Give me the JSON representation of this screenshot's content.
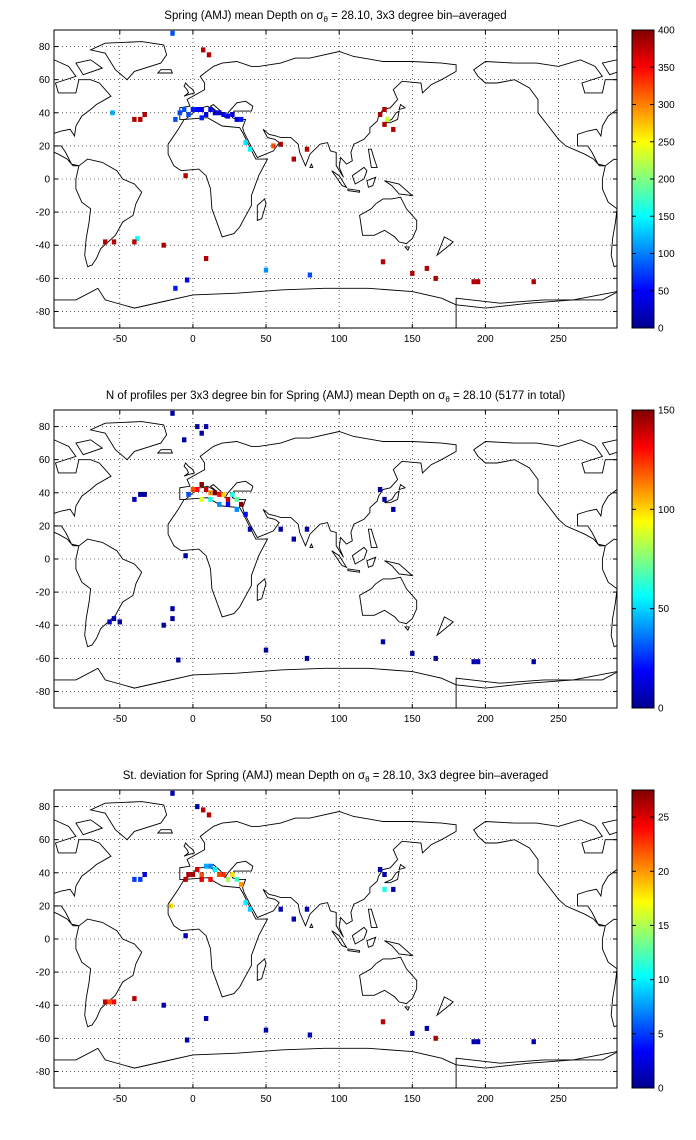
{
  "chart_data": [
    {
      "type": "heatmap",
      "title_pre": "Spring (AMJ) mean Depth on ",
      "title_sym": "σ",
      "title_sub": "θ",
      "title_post": " = 28.10, 3x3 degree bin–averaged",
      "x_ticks": [
        "-50",
        "0",
        "50",
        "100",
        "150",
        "200",
        "250"
      ],
      "y_ticks": [
        "80",
        "60",
        "40",
        "20",
        "0",
        "-20",
        "-40",
        "-60",
        "-80"
      ],
      "xlim": [
        -95,
        290
      ],
      "ylim": [
        -90,
        90
      ],
      "grid": true,
      "colorbar": {
        "min": 0,
        "max": 400,
        "ticks": [
          "0",
          "50",
          "100",
          "150",
          "200",
          "250",
          "300",
          "350",
          "400"
        ]
      },
      "points": [
        [
          -14,
          88,
          80
        ],
        [
          7,
          78,
          380
        ],
        [
          11,
          75,
          380
        ],
        [
          -55,
          40,
          120
        ],
        [
          -40,
          36,
          380
        ],
        [
          -36,
          36,
          380
        ],
        [
          -33,
          39,
          380
        ],
        [
          -12,
          36,
          80
        ],
        [
          -9,
          40,
          80
        ],
        [
          -6,
          42,
          80
        ],
        [
          -3,
          39,
          80
        ],
        [
          0,
          42,
          60
        ],
        [
          3,
          42,
          50
        ],
        [
          6,
          42,
          40
        ],
        [
          9,
          39,
          40
        ],
        [
          12,
          42,
          40
        ],
        [
          15,
          40,
          30
        ],
        [
          18,
          40,
          30
        ],
        [
          21,
          39,
          40
        ],
        [
          24,
          38,
          40
        ],
        [
          27,
          39,
          40
        ],
        [
          30,
          36,
          40
        ],
        [
          33,
          36,
          60
        ],
        [
          6,
          37,
          60
        ],
        [
          36,
          22,
          140
        ],
        [
          39,
          18,
          150
        ],
        [
          -5,
          2,
          380
        ],
        [
          60,
          21,
          380
        ],
        [
          55,
          20,
          320
        ],
        [
          69,
          12,
          380
        ],
        [
          78,
          18,
          380
        ],
        [
          128,
          39,
          380
        ],
        [
          131,
          42,
          380
        ],
        [
          133,
          36,
          230
        ],
        [
          131,
          33,
          380
        ],
        [
          137,
          30,
          380
        ],
        [
          -60,
          -38,
          380
        ],
        [
          -54,
          -38,
          380
        ],
        [
          -38,
          -36,
          150
        ],
        [
          -40,
          -38,
          380
        ],
        [
          -20,
          -40,
          380
        ],
        [
          9,
          -48,
          380
        ],
        [
          130,
          -50,
          380
        ],
        [
          150,
          -57,
          380
        ],
        [
          160,
          -54,
          380
        ],
        [
          166,
          -60,
          380
        ],
        [
          192,
          -62,
          380
        ],
        [
          195,
          -62,
          380
        ],
        [
          233,
          -62,
          380
        ],
        [
          -4,
          -61,
          40
        ],
        [
          -12,
          -66,
          60
        ],
        [
          50,
          -55,
          110
        ],
        [
          80,
          -58,
          80
        ]
      ]
    },
    {
      "type": "heatmap",
      "title_pre": "N of profiles per 3x3 degree bin for Spring (AMJ) mean Depth on ",
      "title_sym": "σ",
      "title_sub": "θ",
      "title_post": " = 28.10 (5177 in total)",
      "x_ticks": [
        "-50",
        "0",
        "50",
        "100",
        "150",
        "200",
        "250"
      ],
      "y_ticks": [
        "80",
        "60",
        "40",
        "20",
        "0",
        "-20",
        "-40",
        "-60",
        "-80"
      ],
      "xlim": [
        -95,
        290
      ],
      "ylim": [
        -90,
        90
      ],
      "grid": true,
      "colorbar": {
        "min": 0,
        "max": 150,
        "ticks": [
          "0",
          "50",
          "100",
          "150"
        ]
      },
      "points": [
        [
          -14,
          88,
          3
        ],
        [
          3,
          80,
          5
        ],
        [
          9,
          80,
          6
        ],
        [
          6,
          76,
          3
        ],
        [
          -6,
          72,
          3
        ],
        [
          -40,
          36,
          5
        ],
        [
          -36,
          39,
          4
        ],
        [
          -33,
          39,
          3
        ],
        [
          -3,
          39,
          30
        ],
        [
          0,
          42,
          120
        ],
        [
          3,
          42,
          130
        ],
        [
          6,
          45,
          150
        ],
        [
          9,
          42,
          140
        ],
        [
          12,
          40,
          110
        ],
        [
          15,
          40,
          150
        ],
        [
          18,
          39,
          130
        ],
        [
          21,
          39,
          100
        ],
        [
          24,
          36,
          140
        ],
        [
          27,
          39,
          60
        ],
        [
          30,
          36,
          70
        ],
        [
          33,
          33,
          150
        ],
        [
          6,
          36,
          90
        ],
        [
          12,
          36,
          60
        ],
        [
          18,
          33,
          40
        ],
        [
          24,
          33,
          20
        ],
        [
          30,
          30,
          40
        ],
        [
          36,
          27,
          20
        ],
        [
          39,
          18,
          4
        ],
        [
          -5,
          2,
          3
        ],
        [
          -14,
          -36,
          3
        ],
        [
          60,
          18,
          3
        ],
        [
          69,
          12,
          3
        ],
        [
          78,
          18,
          3
        ],
        [
          128,
          42,
          3
        ],
        [
          131,
          36,
          3
        ],
        [
          137,
          30,
          3
        ],
        [
          -57,
          -38,
          8
        ],
        [
          -54,
          -36,
          5
        ],
        [
          -50,
          -38,
          6
        ],
        [
          -20,
          -40,
          3
        ],
        [
          -14,
          -30,
          3
        ],
        [
          -10,
          -61,
          3
        ],
        [
          50,
          -55,
          3
        ],
        [
          78,
          -60,
          3
        ],
        [
          130,
          -50,
          3
        ],
        [
          150,
          -57,
          3
        ],
        [
          166,
          -60,
          3
        ],
        [
          192,
          -62,
          5
        ],
        [
          195,
          -62,
          5
        ],
        [
          233,
          -62,
          3
        ]
      ]
    },
    {
      "type": "heatmap",
      "title_pre": "St. deviation for Spring (AMJ) mean Depth on ",
      "title_sym": "σ",
      "title_sub": "θ",
      "title_post": " = 28.10, 3x3 degree bin–averaged",
      "x_ticks": [
        "-50",
        "0",
        "50",
        "100",
        "150",
        "200",
        "250"
      ],
      "y_ticks": [
        "80",
        "60",
        "40",
        "20",
        "0",
        "-20",
        "-40",
        "-60",
        "-80"
      ],
      "xlim": [
        -95,
        290
      ],
      "ylim": [
        -90,
        90
      ],
      "grid": true,
      "colorbar": {
        "min": 0,
        "max": 27.5,
        "ticks": [
          "0",
          "5",
          "10",
          "15",
          "20",
          "25"
        ]
      },
      "points": [
        [
          -14,
          88,
          1
        ],
        [
          7,
          78,
          26
        ],
        [
          11,
          75,
          26
        ],
        [
          3,
          80,
          1
        ],
        [
          -40,
          36,
          5
        ],
        [
          -36,
          36,
          5
        ],
        [
          -33,
          39,
          3
        ],
        [
          -5,
          36,
          26
        ],
        [
          -3,
          39,
          26
        ],
        [
          0,
          39,
          26
        ],
        [
          3,
          42,
          25
        ],
        [
          6,
          39,
          22
        ],
        [
          9,
          44,
          8
        ],
        [
          12,
          44,
          7
        ],
        [
          15,
          42,
          10
        ],
        [
          18,
          39,
          22
        ],
        [
          21,
          39,
          23
        ],
        [
          24,
          36,
          15
        ],
        [
          27,
          39,
          18
        ],
        [
          30,
          36,
          12
        ],
        [
          33,
          33,
          20
        ],
        [
          12,
          36,
          24
        ],
        [
          6,
          36,
          25
        ],
        [
          -15,
          20,
          18
        ],
        [
          36,
          22,
          10
        ],
        [
          39,
          18,
          9
        ],
        [
          -5,
          2,
          1
        ],
        [
          60,
          18,
          1
        ],
        [
          69,
          12,
          1
        ],
        [
          78,
          18,
          1
        ],
        [
          131,
          39,
          1
        ],
        [
          128,
          42,
          1
        ],
        [
          131,
          30,
          11
        ],
        [
          137,
          30,
          1
        ],
        [
          -60,
          -38,
          26
        ],
        [
          -57,
          -38,
          22
        ],
        [
          -54,
          -38,
          24
        ],
        [
          -40,
          -36,
          26
        ],
        [
          -20,
          -40,
          1
        ],
        [
          9,
          -48,
          1
        ],
        [
          130,
          -50,
          26
        ],
        [
          150,
          -57,
          1
        ],
        [
          160,
          -54,
          1
        ],
        [
          166,
          -60,
          26
        ],
        [
          192,
          -62,
          1
        ],
        [
          195,
          -62,
          1
        ],
        [
          233,
          -62,
          1
        ],
        [
          -4,
          -61,
          1
        ],
        [
          50,
          -55,
          1
        ],
        [
          80,
          -58,
          1
        ]
      ]
    }
  ],
  "colormap": [
    "#00008f",
    "#0000ff",
    "#0080ff",
    "#00ffff",
    "#80ff80",
    "#ffff00",
    "#ff8000",
    "#ff0000",
    "#800000"
  ]
}
